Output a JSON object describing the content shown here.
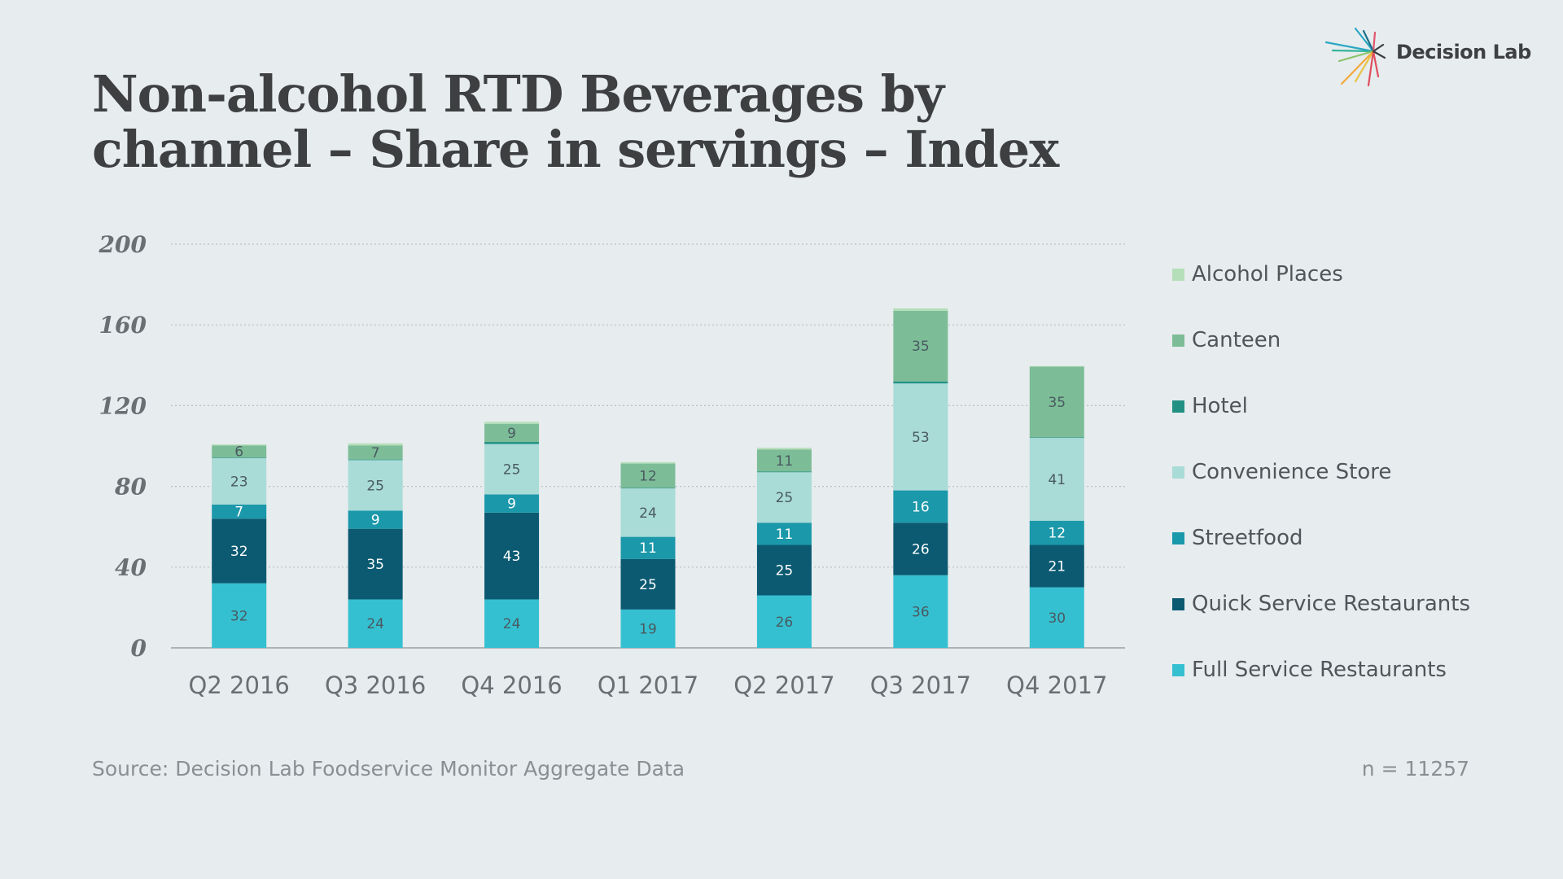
{
  "title_line1": "Non-alcohol RTD Beverages by",
  "title_line2": "channel – Share in servings – Index",
  "logo_text": "Decision Lab",
  "source": "Source: Decision Lab Foodservice Monitor Aggregate Data",
  "sample": "n = 11257",
  "colors": {
    "background": "#e7ecee",
    "title": "#3d3f41"
  },
  "chart_data": {
    "type": "bar",
    "stacked": true,
    "title": "Non-alcohol RTD Beverages by channel – Share in servings – Index",
    "xlabel": "",
    "ylabel": "",
    "ylim": [
      0,
      200
    ],
    "yticks": [
      0,
      40,
      80,
      120,
      160,
      200
    ],
    "grid": true,
    "legend_position": "right",
    "categories": [
      "Q2 2016",
      "Q3 2016",
      "Q4 2016",
      "Q1 2017",
      "Q2 2017",
      "Q3 2017",
      "Q4 2017"
    ],
    "series": [
      {
        "name": "Full Service Restaurants",
        "color": "#35c0d1",
        "label_color": "#4a5a60",
        "values": [
          32,
          24,
          24,
          19,
          26,
          36,
          30
        ],
        "labels": [
          "32",
          "24",
          "24",
          "19",
          "26",
          "36",
          "30"
        ]
      },
      {
        "name": "Quick Service Restaurants",
        "color": "#0b5a72",
        "label_color": "#ffffff",
        "values": [
          32,
          35,
          43,
          25,
          25,
          26,
          21
        ],
        "labels": [
          "32",
          "35",
          "43",
          "25",
          "25",
          "26",
          "21"
        ]
      },
      {
        "name": "Streetfood",
        "color": "#1b98aa",
        "label_color": "#ffffff",
        "values": [
          7,
          9,
          9,
          11,
          11,
          16,
          12
        ],
        "labels": [
          "7",
          "9",
          "9",
          "11",
          "11",
          "16",
          "12"
        ]
      },
      {
        "name": "Convenience Store",
        "color": "#a9dbd7",
        "label_color": "#4a5a60",
        "values": [
          23,
          25,
          25,
          24,
          25,
          53,
          41
        ],
        "labels": [
          "23",
          "25",
          "25",
          "24",
          "25",
          "53",
          "41"
        ]
      },
      {
        "name": "Hotel",
        "color": "#229184",
        "label_color": "#4a5a60",
        "values": [
          0.3,
          0.3,
          1,
          0.3,
          0.3,
          1,
          0.3
        ],
        "labels": [
          "",
          "",
          "",
          "",
          "",
          "",
          ""
        ]
      },
      {
        "name": "Canteen",
        "color": "#7cbd98",
        "label_color": "#4a5a60",
        "values": [
          6,
          7,
          9,
          12,
          11,
          35,
          35
        ],
        "labels": [
          "6",
          "7",
          "9",
          "12",
          "11",
          "35",
          "35"
        ]
      },
      {
        "name": "Alcohol Places",
        "color": "#b4dfb8",
        "label_color": "#4a5a60",
        "values": [
          0.5,
          1,
          1,
          0.7,
          0.8,
          1.2,
          0.3
        ],
        "labels": [
          "",
          "",
          "",
          "",
          "",
          "",
          ""
        ]
      }
    ]
  }
}
